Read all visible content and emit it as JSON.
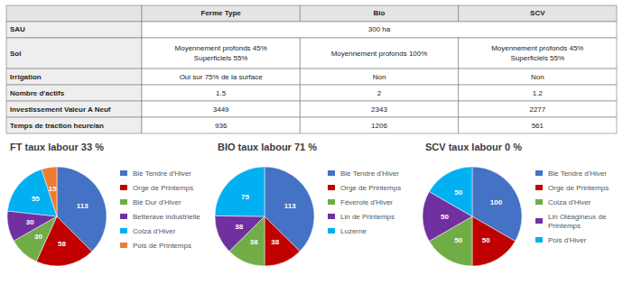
{
  "chart_data": [
    {
      "type": "table",
      "columns": [
        "Ferme Type",
        "Bio",
        "SCV"
      ],
      "rows": [
        "SAU",
        "Sol",
        "Irrigation",
        "Nombre d'actifs",
        "Investissement Valeur A Neuf",
        "Temps de traction heure/an"
      ],
      "cells": [
        [
          "300 ha"
        ],
        [
          "Moyennement profonds 45%\nSuperficiels 55%",
          "Moyennement profonds 100%",
          "Moyennement profonds 45%\nSuperficiels 55%"
        ],
        [
          "Oui sur 75% de la surface",
          "Non",
          "Non"
        ],
        [
          "1.5",
          "2",
          "1.2"
        ],
        [
          "3449",
          "2343",
          "2277"
        ],
        [
          "936",
          "1206",
          "561"
        ]
      ]
    },
    {
      "type": "pie",
      "title": "FT taux labour 33 %",
      "categories": [
        "Blé Tendre d'Hiver",
        "Orge de Printemps",
        "Blé Dur d'Hiver",
        "Betterave industrielle",
        "Colza d'Hiver",
        "Pois de Printemps"
      ],
      "values": [
        113,
        58,
        30,
        30,
        55,
        15
      ],
      "colors": [
        "#4472C4",
        "#C00000",
        "#70AD47",
        "#7030A0",
        "#00B0F0",
        "#ED7D31"
      ],
      "data_labels": true,
      "legend": "right"
    },
    {
      "type": "pie",
      "title": "BIO taux labour 71 %",
      "categories": [
        "Blé Tendre d'Hiver",
        "Orge de Printemps",
        "Féverole d'Hiver",
        "Lin de Printemps",
        "Luzerne"
      ],
      "values": [
        113,
        38,
        38,
        38,
        75
      ],
      "colors": [
        "#4472C4",
        "#C00000",
        "#70AD47",
        "#7030A0",
        "#00B0F0"
      ],
      "data_labels": true,
      "legend": "right"
    },
    {
      "type": "pie",
      "title": "SCV taux labour 0 %",
      "categories": [
        "Blé Tendre d'Hiver",
        "Orge de Printemps",
        "Colza d'Hiver",
        "Lin Oléagineux de Printemps",
        "Pois d'Hiver"
      ],
      "values": [
        100,
        50,
        50,
        50,
        50
      ],
      "colors": [
        "#4472C4",
        "#C00000",
        "#70AD47",
        "#7030A0",
        "#00B0F0"
      ],
      "data_labels": true,
      "legend": "right"
    }
  ]
}
